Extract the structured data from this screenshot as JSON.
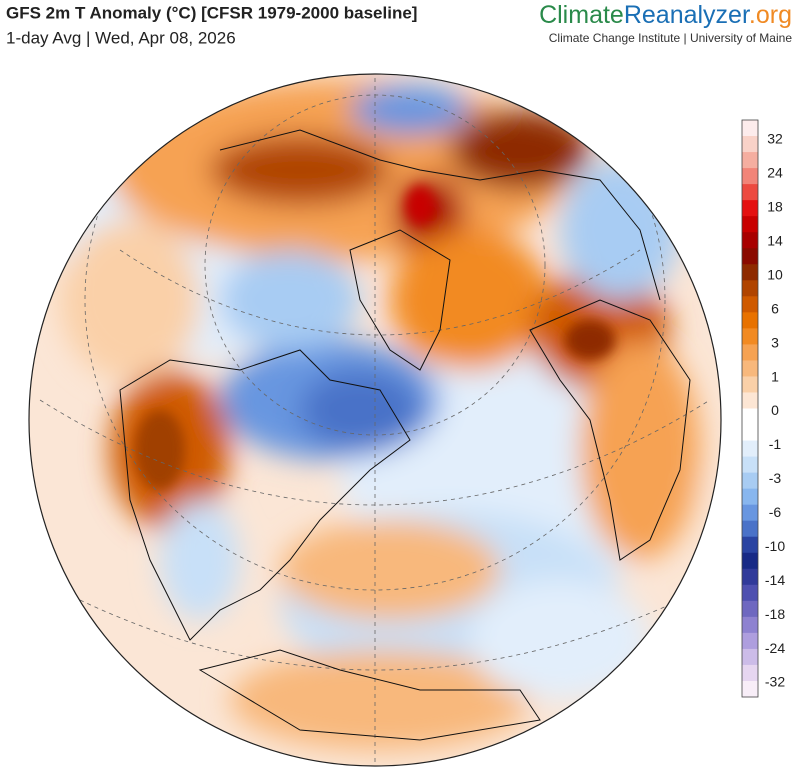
{
  "header": {
    "title": "GFS 2m T Anomaly (°C) [CFSR 1979-2000 baseline]",
    "subtitle": "1-day Avg | Wed, Apr 08, 2026"
  },
  "brand": {
    "part1": "Climate",
    "part2": "Reanalyzer",
    "part3": ".org",
    "tagline": "Climate Change Institute | University of Maine"
  },
  "colorbar": {
    "ticks": [
      32,
      24,
      18,
      14,
      10,
      6,
      3,
      1,
      0,
      -1,
      -3,
      -6,
      -10,
      -14,
      -18,
      -24,
      -32
    ],
    "colors": [
      "#fdecec",
      "#f9d2c8",
      "#f5aea0",
      "#f18478",
      "#ec4a40",
      "#e41010",
      "#c80000",
      "#a80000",
      "#8a0a00",
      "#8e2a00",
      "#b04400",
      "#cf5a00",
      "#e87200",
      "#f28a22",
      "#f6a252",
      "#f8b87c",
      "#fad0a8",
      "#fde6d4",
      "#ffffff",
      "#ffffff",
      "#e2eefb",
      "#c8e0f8",
      "#a8ccf3",
      "#88b6ee",
      "#6896e0",
      "#4a72c8",
      "#2a44a2",
      "#182a86",
      "#303a9a",
      "#4e50b0",
      "#6e68c0",
      "#8e82d0",
      "#ae9ede",
      "#ccbce8",
      "#e6d6f0",
      "#f8eef8"
    ]
  }
}
